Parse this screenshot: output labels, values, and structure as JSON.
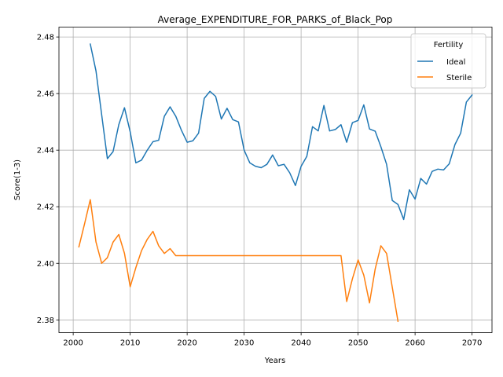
{
  "chart_data": {
    "type": "line",
    "title": "Average_EXPENDITURE_FOR_PARKS_of_Black_Pop",
    "xlabel": "Years",
    "ylabel": "Score(1-3)",
    "xlim": [
      1997.5,
      2073.5
    ],
    "ylim": [
      2.3755,
      2.4835
    ],
    "xticks": [
      2000,
      2010,
      2020,
      2030,
      2040,
      2050,
      2060,
      2070
    ],
    "yticks": [
      2.38,
      2.4,
      2.42,
      2.44,
      2.46,
      2.48
    ],
    "ytick_labels": [
      "2.38",
      "2.40",
      "2.42",
      "2.44",
      "2.46",
      "2.48"
    ],
    "grid": true,
    "legend": {
      "title": "Fertility",
      "placement": "top-right"
    },
    "series": [
      {
        "name": "Ideal",
        "color": "#1f77b4",
        "x": [
          2003,
          2004,
          2005,
          2006,
          2007,
          2008,
          2009,
          2010,
          2011,
          2012,
          2013,
          2014,
          2015,
          2016,
          2017,
          2018,
          2019,
          2020,
          2021,
          2022,
          2023,
          2024,
          2025,
          2026,
          2027,
          2028,
          2029,
          2030,
          2031,
          2032,
          2033,
          2034,
          2035,
          2036,
          2037,
          2038,
          2039,
          2040,
          2041,
          2042,
          2043,
          2044,
          2045,
          2046,
          2047,
          2048,
          2049,
          2050,
          2051,
          2052,
          2053,
          2054,
          2055,
          2056,
          2057,
          2058,
          2059,
          2060,
          2061,
          2062,
          2063,
          2064,
          2065,
          2066,
          2067,
          2068,
          2069,
          2070
        ],
        "y": [
          2.4775,
          2.468,
          2.4525,
          2.437,
          2.4395,
          2.449,
          2.455,
          2.4465,
          2.4355,
          2.4365,
          2.44,
          2.443,
          2.4435,
          2.452,
          2.4553,
          2.452,
          2.447,
          2.4428,
          2.4433,
          2.446,
          2.4583,
          2.4608,
          2.459,
          2.451,
          2.4548,
          2.4508,
          2.45,
          2.44,
          2.4355,
          2.4343,
          2.4338,
          2.435,
          2.4383,
          2.4345,
          2.435,
          2.432,
          2.4275,
          2.4343,
          2.4378,
          2.4483,
          2.4468,
          2.4558,
          2.4468,
          2.4473,
          2.449,
          2.4428,
          2.4497,
          2.4505,
          2.456,
          2.4475,
          2.4467,
          2.4412,
          2.435,
          2.4222,
          2.4208,
          2.4155,
          2.426,
          2.4227,
          2.43,
          2.428,
          2.4325,
          2.4333,
          2.433,
          2.4352,
          2.442,
          2.446,
          2.457,
          2.4595
        ]
      },
      {
        "name": "Sterile",
        "color": "#ff7f0e",
        "x": [
          2001,
          2002,
          2003,
          2004,
          2005,
          2006,
          2007,
          2008,
          2009,
          2010,
          2011,
          2012,
          2013,
          2014,
          2015,
          2016,
          2017,
          2018,
          2019,
          2020,
          2021,
          2022,
          2023,
          2024,
          2025,
          2026,
          2027,
          2028,
          2029,
          2030,
          2031,
          2032,
          2033,
          2034,
          2035,
          2036,
          2037,
          2038,
          2039,
          2040,
          2041,
          2042,
          2043,
          2044,
          2045,
          2046,
          2047,
          2048,
          2049,
          2050,
          2051,
          2052,
          2053,
          2054,
          2055,
          2056,
          2057
        ],
        "y": [
          2.4058,
          2.414,
          2.4225,
          2.4075,
          2.4,
          2.402,
          2.4075,
          2.4102,
          2.4035,
          2.3917,
          2.3985,
          2.4045,
          2.4085,
          2.4113,
          2.4062,
          2.4035,
          2.4052,
          2.4027,
          2.4027,
          2.4027,
          2.4027,
          2.4027,
          2.4027,
          2.4027,
          2.4027,
          2.4027,
          2.4027,
          2.4027,
          2.4027,
          2.4027,
          2.4027,
          2.4027,
          2.4027,
          2.4027,
          2.4027,
          2.4027,
          2.4027,
          2.4027,
          2.4027,
          2.4027,
          2.4027,
          2.4027,
          2.4027,
          2.4027,
          2.4027,
          2.4027,
          2.4027,
          2.3865,
          2.3945,
          2.4012,
          2.3958,
          2.386,
          2.398,
          2.4062,
          2.4035,
          2.3915,
          2.3795
        ]
      }
    ]
  }
}
